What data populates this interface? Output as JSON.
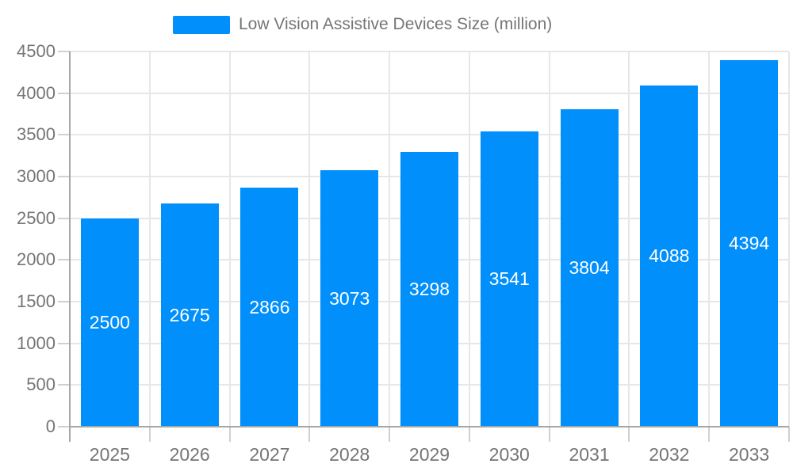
{
  "chart_data": {
    "type": "bar",
    "title": "Low Vision Assistive Devices Size (million)",
    "series_name": "Low Vision Assistive Devices Size (million)",
    "categories": [
      "2025",
      "2026",
      "2027",
      "2028",
      "2029",
      "2030",
      "2031",
      "2032",
      "2033"
    ],
    "values": [
      2500,
      2675,
      2866,
      3073,
      3298,
      3541,
      3804,
      4088,
      4394
    ],
    "xlabel": "",
    "ylabel": "",
    "ylim": [
      0,
      4500
    ],
    "ytick_step": 500,
    "yticks": [
      0,
      500,
      1000,
      1500,
      2000,
      2500,
      3000,
      3500,
      4000,
      4500
    ],
    "grid": true,
    "legend_position": "top",
    "bar_color": "#008FFB",
    "value_label_color": "#FFFFFF",
    "axis_label_color": "#757575",
    "grid_color": "#E7E7E7",
    "axis_line_color": "#A6A6A6",
    "tick_color": "#D0D0D0",
    "background": "#FFFFFF"
  }
}
